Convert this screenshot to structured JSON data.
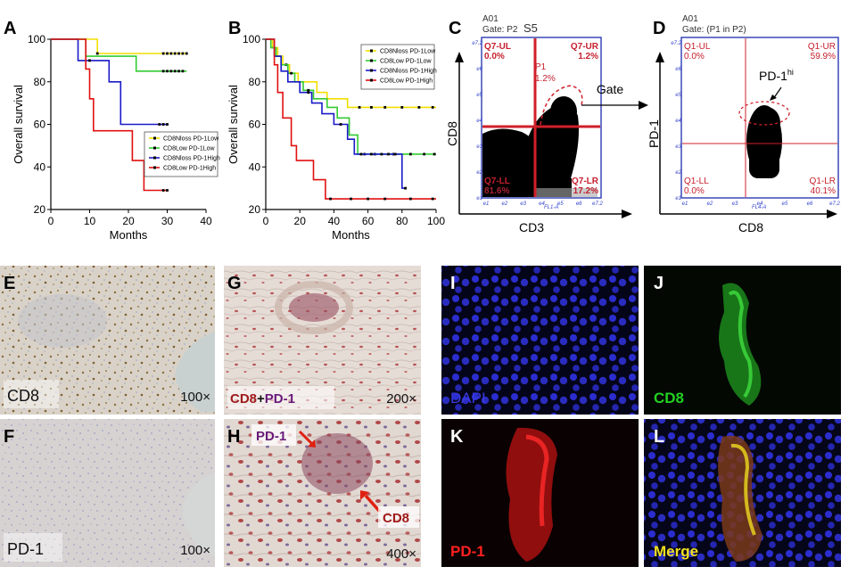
{
  "panels": {
    "A": {
      "label": "A",
      "chart_data": {
        "type": "line",
        "xlabel": "Months",
        "ylabel": "Overall survival",
        "xlim": [
          0,
          40
        ],
        "ylim": [
          20,
          100
        ],
        "xticks": [
          "0",
          "10",
          "20",
          "30",
          "40"
        ],
        "yticks": [
          "20",
          "40",
          "60",
          "80",
          "100"
        ],
        "legend_position": "center-right",
        "series": [
          {
            "name": "CD8Nloss PD-1Low",
            "color": "#f2df00",
            "steps": [
              [
                0,
                100
              ],
              [
                12,
                100
              ],
              [
                12,
                93.3
              ],
              [
                35,
                93.3
              ]
            ],
            "censors": [
              [
                12,
                93.3
              ],
              [
                29,
                93.3
              ],
              [
                30,
                93.3
              ],
              [
                31,
                93.3
              ],
              [
                32,
                93.3
              ],
              [
                33,
                93.3
              ],
              [
                34,
                93.3
              ],
              [
                35,
                93.3
              ]
            ]
          },
          {
            "name": "CD8Low PD-1Low",
            "color": "#33cc33",
            "steps": [
              [
                0,
                100
              ],
              [
                9,
                100
              ],
              [
                9,
                92
              ],
              [
                22,
                92
              ],
              [
                22,
                85
              ],
              [
                35,
                85
              ]
            ],
            "censors": [
              [
                29,
                85
              ],
              [
                30,
                85
              ],
              [
                31,
                85
              ],
              [
                32,
                85
              ],
              [
                33,
                85
              ],
              [
                34,
                85
              ]
            ]
          },
          {
            "name": "CD8Nloss PD-1High",
            "color": "#1a1ac8",
            "steps": [
              [
                0,
                100
              ],
              [
                7,
                100
              ],
              [
                7,
                90
              ],
              [
                15,
                90
              ],
              [
                15,
                80
              ],
              [
                18,
                80
              ],
              [
                18,
                60
              ],
              [
                30,
                60
              ]
            ],
            "censors": [
              [
                10,
                90
              ],
              [
                28,
                60
              ],
              [
                29,
                60
              ],
              [
                30,
                60
              ]
            ]
          },
          {
            "name": "CD8Low PD-1High",
            "color": "#e01010",
            "steps": [
              [
                0,
                100
              ],
              [
                9,
                100
              ],
              [
                9,
                86
              ],
              [
                10,
                86
              ],
              [
                10,
                72
              ],
              [
                11,
                72
              ],
              [
                11,
                57
              ],
              [
                21,
                57
              ],
              [
                21,
                43
              ],
              [
                24,
                43
              ],
              [
                24,
                29
              ],
              [
                30,
                29
              ]
            ],
            "censors": [
              [
                29,
                29
              ],
              [
                30,
                29
              ]
            ]
          }
        ]
      }
    },
    "B": {
      "label": "B",
      "chart_data": {
        "type": "line",
        "xlabel": "Months",
        "ylabel": "Overall survival",
        "xlim": [
          0,
          100
        ],
        "ylim": [
          20,
          100
        ],
        "xticks": [
          "0",
          "20",
          "40",
          "60",
          "80",
          "100"
        ],
        "yticks": [
          "20",
          "40",
          "60",
          "80",
          "100"
        ],
        "legend_position": "top-right",
        "series": [
          {
            "name": "CD8Nloss PD-1Low",
            "color": "#f2df00",
            "steps": [
              [
                0,
                100
              ],
              [
                4,
                100
              ],
              [
                4,
                96
              ],
              [
                7,
                96
              ],
              [
                7,
                92
              ],
              [
                10,
                92
              ],
              [
                10,
                88
              ],
              [
                14,
                88
              ],
              [
                14,
                84
              ],
              [
                19,
                84
              ],
              [
                19,
                80
              ],
              [
                30,
                80
              ],
              [
                30,
                75
              ],
              [
                36,
                75
              ],
              [
                36,
                72
              ],
              [
                48,
                72
              ],
              [
                48,
                68
              ],
              [
                100,
                68
              ]
            ],
            "censors": [
              [
                12,
                88
              ],
              [
                55,
                68
              ],
              [
                62,
                68
              ],
              [
                70,
                68
              ],
              [
                80,
                68
              ],
              [
                90,
                68
              ],
              [
                98,
                68
              ]
            ]
          },
          {
            "name": "CD8Low PD-1Low",
            "color": "#33cc33",
            "steps": [
              [
                0,
                100
              ],
              [
                3,
                100
              ],
              [
                3,
                96
              ],
              [
                6,
                96
              ],
              [
                6,
                92
              ],
              [
                9,
                92
              ],
              [
                9,
                88
              ],
              [
                13,
                88
              ],
              [
                13,
                84
              ],
              [
                17,
                84
              ],
              [
                17,
                80
              ],
              [
                22,
                80
              ],
              [
                22,
                76
              ],
              [
                28,
                76
              ],
              [
                28,
                72
              ],
              [
                36,
                72
              ],
              [
                36,
                68
              ],
              [
                42,
                68
              ],
              [
                42,
                63
              ],
              [
                49,
                63
              ],
              [
                49,
                55
              ],
              [
                54,
                55
              ],
              [
                54,
                46
              ],
              [
                100,
                46
              ]
            ],
            "censors": [
              [
                15,
                84
              ],
              [
                25,
                76
              ],
              [
                58,
                46
              ],
              [
                64,
                46
              ],
              [
                75,
                46
              ],
              [
                85,
                46
              ],
              [
                93,
                46
              ],
              [
                99,
                46
              ]
            ]
          },
          {
            "name": "CD8Nloss PD-1High",
            "color": "#1a1ac8",
            "steps": [
              [
                0,
                100
              ],
              [
                5,
                100
              ],
              [
                5,
                92
              ],
              [
                9,
                92
              ],
              [
                9,
                85
              ],
              [
                13,
                85
              ],
              [
                13,
                80
              ],
              [
                20,
                80
              ],
              [
                20,
                75
              ],
              [
                27,
                75
              ],
              [
                27,
                70
              ],
              [
                33,
                70
              ],
              [
                33,
                65
              ],
              [
                40,
                65
              ],
              [
                40,
                60
              ],
              [
                48,
                60
              ],
              [
                48,
                53
              ],
              [
                52,
                53
              ],
              [
                52,
                46
              ],
              [
                80,
                46
              ],
              [
                80,
                30
              ],
              [
                82,
                30
              ]
            ],
            "censors": [
              [
                25,
                75
              ],
              [
                44,
                60
              ],
              [
                56,
                46
              ],
              [
                62,
                46
              ],
              [
                68,
                46
              ],
              [
                72,
                46
              ],
              [
                76,
                46
              ],
              [
                82,
                30
              ]
            ]
          },
          {
            "name": "CD8Low PD-1High",
            "color": "#e01010",
            "steps": [
              [
                0,
                100
              ],
              [
                5,
                100
              ],
              [
                5,
                88
              ],
              [
                7,
                88
              ],
              [
                7,
                75
              ],
              [
                10,
                75
              ],
              [
                10,
                63
              ],
              [
                15,
                63
              ],
              [
                15,
                50
              ],
              [
                18,
                50
              ],
              [
                18,
                43
              ],
              [
                28,
                43
              ],
              [
                28,
                34
              ],
              [
                35,
                34
              ],
              [
                35,
                25
              ],
              [
                100,
                25
              ]
            ],
            "censors": [
              [
                38,
                25
              ],
              [
                50,
                25
              ],
              [
                60,
                25
              ],
              [
                70,
                25
              ],
              [
                85,
                25
              ],
              [
                98,
                25
              ]
            ]
          }
        ]
      }
    },
    "C": {
      "label": "C",
      "header_line1": "A01",
      "header_line2": "Gate: P2",
      "sample": "S5",
      "ylabel": "CD8",
      "xlabel": "CD3",
      "x_axis_name": "FL1-A",
      "quad_ul_name": "Q7-UL",
      "quad_ul_value": "0.0%",
      "quad_ur_name": "Q7-UR",
      "quad_ur_value": "1.2%",
      "quad_ll_name": "Q7-LL",
      "quad_ll_value": "81.6%",
      "quad_lr_name": "Q7-LR",
      "quad_lr_value": "17.2%",
      "gate_name": "P1",
      "gate_value": "1.2%",
      "gate_arrow_label": "Gate"
    },
    "D": {
      "label": "D",
      "header_line1": "A01",
      "header_line2": "Gate: (P1 in P2)",
      "ylabel": "PD-1",
      "xlabel": "CD8",
      "x_axis_name": "FL4-A",
      "quad_ul_name": "Q1-UL",
      "quad_ul_value": "0.0%",
      "quad_ur_name": "Q1-UR",
      "quad_ur_value": "59.9%",
      "quad_ll_name": "Q1-LL",
      "quad_ll_value": "0.0%",
      "quad_lr_name": "Q1-LR",
      "quad_lr_value": "40.1%",
      "annotation": "PD-1",
      "annotation_sup": "hi"
    },
    "E": {
      "label": "E",
      "stain": "CD8",
      "mag": "100×"
    },
    "F": {
      "label": "F",
      "stain": "PD-1",
      "mag": "100×"
    },
    "G": {
      "label": "G",
      "stain_a": "CD8",
      "stain_plus": "+",
      "stain_b": "PD-1",
      "mag": "200×"
    },
    "H": {
      "label": "H",
      "arrow_a": "PD-1",
      "arrow_b": "CD8",
      "mag": "400×"
    },
    "I": {
      "label": "I",
      "channel": "DAPI"
    },
    "J": {
      "label": "J",
      "channel": "CD8"
    },
    "K": {
      "label": "K",
      "channel": "PD-1"
    },
    "L": {
      "label": "L",
      "channel": "Merge"
    },
    "flow_ticks": [
      "e1",
      "e2",
      "e3",
      "e4",
      "e5",
      "e6",
      "e7.2"
    ]
  },
  "colors": {
    "quad_red": "#c5202e",
    "micro_blue": "#2b2dcf",
    "micro_green": "#22c022",
    "micro_red": "#e02020",
    "merge_yellow": "#f0e020"
  }
}
